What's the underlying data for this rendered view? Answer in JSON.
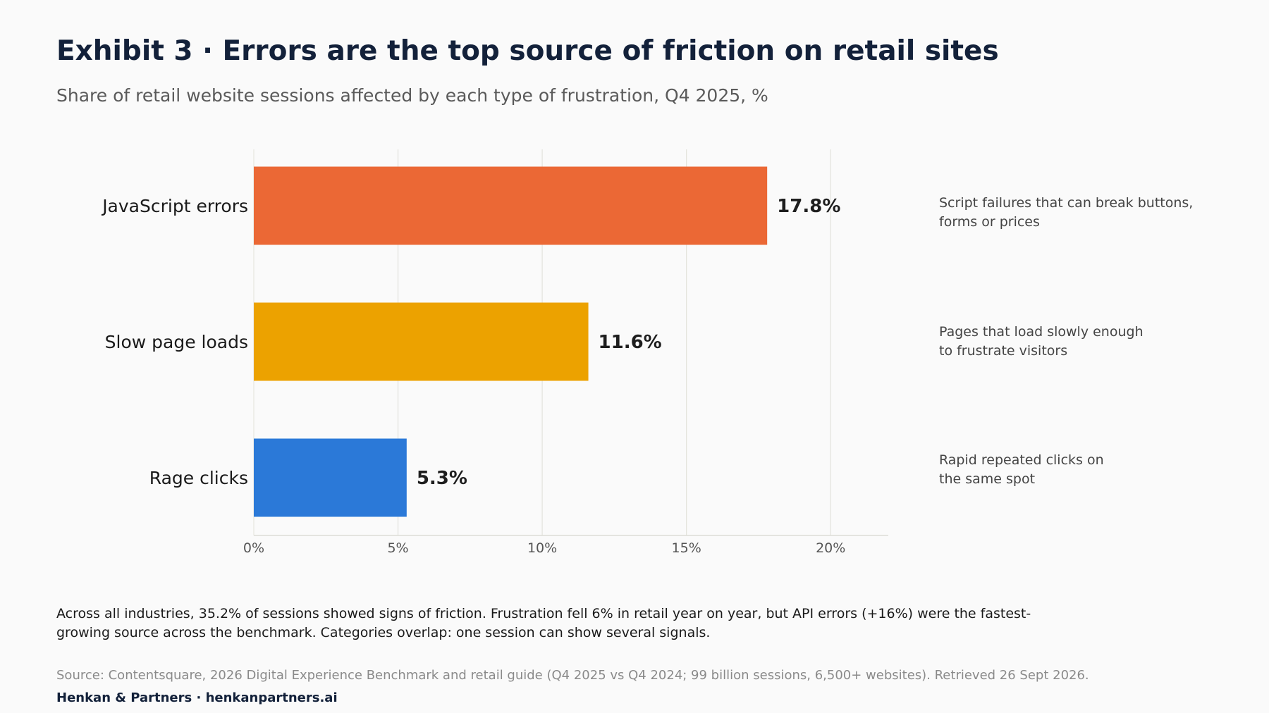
{
  "header": {
    "title": "Exhibit 3 · Errors are the top source of friction on retail sites",
    "subtitle": "Share of retail website sessions affected by each type of frustration, Q4 2025, %"
  },
  "chart_data": {
    "type": "bar",
    "orientation": "horizontal",
    "categories": [
      "JavaScript errors",
      "Slow page loads",
      "Rage clicks"
    ],
    "values": [
      17.8,
      11.6,
      5.3
    ],
    "value_labels": [
      "17.8%",
      "11.6%",
      "5.3%"
    ],
    "colors": [
      "#eb6835",
      "#eca200",
      "#2b79d8"
    ],
    "xlim": [
      0,
      22
    ],
    "xticks": [
      0,
      5,
      10,
      15,
      20
    ],
    "xtick_labels": [
      "0%",
      "5%",
      "10%",
      "15%",
      "20%"
    ],
    "grid": true,
    "notes": [
      "Script failures that can break buttons,\nforms or prices",
      "Pages that load slowly enough\nto frustrate visitors",
      "Rapid repeated clicks on\nthe same spot"
    ]
  },
  "footer": {
    "summary": "Across all industries, 35.2% of sessions showed signs of friction. Frustration fell 6% in retail year on year, but API errors (+16%) were the fastest-growing source across the benchmark. Categories overlap: one session can show several signals.",
    "source": "Source: Contentsquare, 2026 Digital Experience Benchmark and retail guide (Q4 2025 vs Q4 2024; 99 billion sessions, 6,500+ websites). Retrieved 26 Sept 2026.",
    "brand": "Henkan & Partners · henkanpartners.ai"
  }
}
